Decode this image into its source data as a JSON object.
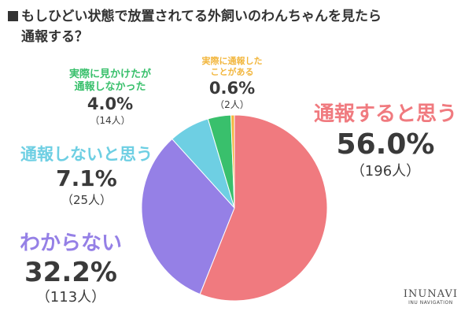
{
  "title": {
    "line1": "もしひどい状態で放置されてる外飼いのわんちゃんを見たら",
    "line2": "通報する？"
  },
  "logo": {
    "name": "INUNAVI",
    "sub": "INU NAVIGATION"
  },
  "chart_data": {
    "type": "pie",
    "start": "12 o'clock",
    "direction": "clockwise",
    "slices": [
      {
        "label": "通報すると思う",
        "value": 56.0,
        "display_pct": "56.0%",
        "count": "（196人）",
        "color": "#f07a7f"
      },
      {
        "label": "わからない",
        "value": 32.2,
        "display_pct": "32.2%",
        "count": "（113人）",
        "color": "#9580e6"
      },
      {
        "label": "通報しないと思う",
        "value": 7.1,
        "display_pct": "7.1%",
        "count": "（25人）",
        "color": "#6ecfe3"
      },
      {
        "label": "実際に見かけたが通報しなかった",
        "label_line1": "実際に見かけたが",
        "label_line2": "通報しなかった",
        "value": 4.0,
        "display_pct": "4.0%",
        "count": "（14人）",
        "color": "#39c06c"
      },
      {
        "label": "実際に通報したことがある",
        "label_line1": "実際に通報した",
        "label_line2": "ことがある",
        "value": 0.6,
        "display_pct": "0.6%",
        "count": "（2人）",
        "color": "#f2b63d"
      }
    ]
  }
}
